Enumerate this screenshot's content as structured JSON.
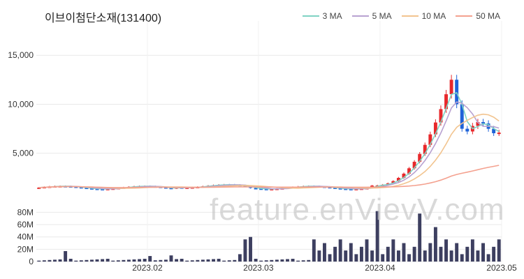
{
  "title": "이브이첨단소재(131400)",
  "watermark": "feature.enVievV.com",
  "legend": [
    {
      "label": "3 MA",
      "color": "#7fd3c3"
    },
    {
      "label": "5 MA",
      "color": "#b8a2d1"
    },
    {
      "label": "10 MA",
      "color": "#f2c48f"
    },
    {
      "label": "50 MA",
      "color": "#f4a18f"
    }
  ],
  "colors": {
    "up": "#e8282b",
    "down": "#1f63d8",
    "volume": "#3d3f60",
    "grid": "#e9e9e9"
  },
  "chart_data": [
    {
      "type": "candlestick",
      "ylim": [
        0,
        18500
      ],
      "yticks": [
        5000,
        10000,
        15000
      ],
      "ytick_labels": [
        "5,000",
        "10,000",
        "15,000"
      ],
      "xtick_labels": [
        "2023.02",
        "2023.03",
        "2023.04",
        "2023.05"
      ],
      "xtick_index": [
        21,
        42,
        65,
        88
      ],
      "n": 88,
      "volume_ylim": [
        0,
        85000000
      ],
      "volume_yticks": [
        0,
        20000000,
        40000000,
        60000000,
        80000000
      ],
      "volume_ytick_labels": [
        "0",
        "20M",
        "40M",
        "60M",
        "80M"
      ]
    }
  ]
}
